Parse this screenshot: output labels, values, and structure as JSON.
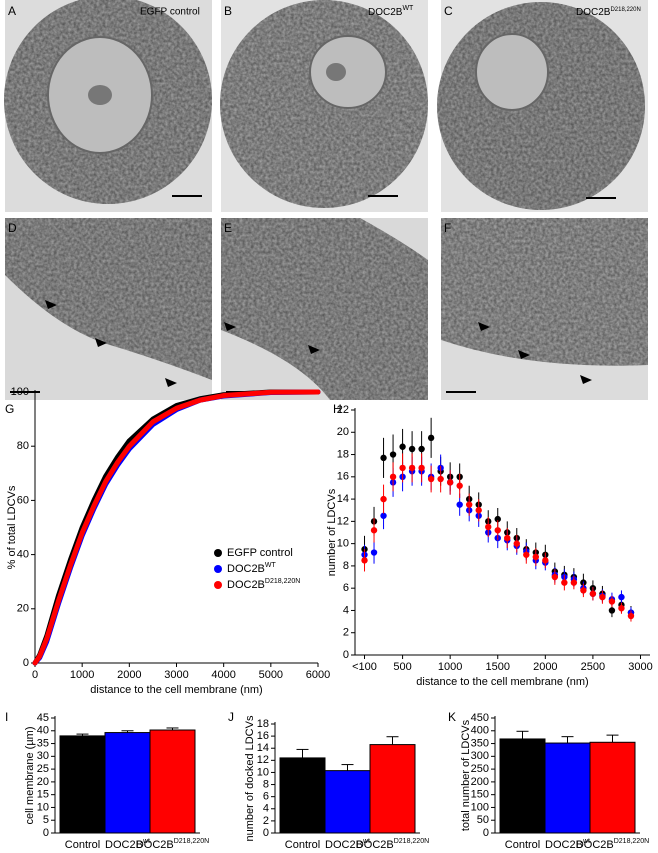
{
  "micrographs": [
    {
      "label": "A",
      "caption": "EGFP control"
    },
    {
      "label": "B",
      "caption": "DOC2B",
      "superscript": "WT"
    },
    {
      "label": "C",
      "caption": "DOC2B",
      "superscript": "D218,220N"
    },
    {
      "label": "D"
    },
    {
      "label": "E"
    },
    {
      "label": "F"
    }
  ],
  "chart_data": [
    {
      "type": "line",
      "label": "G",
      "x_label": "distance to the cell membrane (nm)",
      "y_label": "% of total LDCVs",
      "x": [
        0,
        100,
        250,
        500,
        750,
        1000,
        1250,
        1500,
        1750,
        2000,
        2500,
        3000,
        3500,
        4000,
        5000,
        6000
      ],
      "series": [
        {
          "name": "EGFP control",
          "color": "#000000",
          "values": [
            0,
            3,
            10,
            25,
            38,
            50,
            60,
            69,
            76,
            82,
            90,
            95,
            97.5,
            99,
            100,
            100
          ]
        },
        {
          "name": "DOC2B",
          "superscript": "WT",
          "color": "#0000ff",
          "values": [
            0,
            2,
            8,
            22,
            35,
            47,
            57,
            66,
            73,
            79,
            88,
            93.5,
            97,
            98.5,
            99.8,
            100
          ]
        },
        {
          "name": "DOC2B",
          "superscript": "D218,220N",
          "color": "#ff0000",
          "values": [
            0,
            2.5,
            9,
            23,
            36,
            48,
            58,
            67,
            74,
            80,
            89,
            94,
            97,
            98.7,
            99.9,
            100
          ]
        }
      ],
      "xlim": [
        0,
        6000
      ],
      "xticks": [
        0,
        1000,
        2000,
        3000,
        4000,
        5000,
        6000
      ],
      "ylim": [
        0,
        100
      ],
      "yticks": [
        0,
        20,
        40,
        60,
        80,
        100
      ],
      "legend": "lower right"
    },
    {
      "type": "scatter",
      "label": "H",
      "x_label": "distance to the cell membrane (nm)",
      "y_label": "number of LDCVs",
      "x": [
        100,
        200,
        300,
        400,
        500,
        600,
        700,
        800,
        900,
        1000,
        1100,
        1200,
        1300,
        1400,
        1500,
        1600,
        1700,
        1800,
        1900,
        2000,
        2100,
        2200,
        2300,
        2400,
        2500,
        2600,
        2700,
        2800,
        2900
      ],
      "series": [
        {
          "color": "#000000",
          "values": [
            9.5,
            12,
            17.7,
            18,
            18.7,
            18.5,
            18.5,
            19.5,
            16.5,
            16,
            16,
            14,
            13.5,
            12,
            12.2,
            11,
            10.5,
            9.5,
            9.2,
            9,
            7.5,
            7.2,
            7,
            6.5,
            6,
            5.5,
            4,
            4.5,
            3.8
          ],
          "errors": [
            1.2,
            1.3,
            1.8,
            1.8,
            1.6,
            1.6,
            1.6,
            1.8,
            1.3,
            1.3,
            1.2,
            1.2,
            1.1,
            1.0,
            1.0,
            1.0,
            0.9,
            0.9,
            0.9,
            0.9,
            0.8,
            0.8,
            0.8,
            0.8,
            0.7,
            0.7,
            0.6,
            0.7,
            0.6
          ]
        },
        {
          "color": "#0000ff",
          "values": [
            9,
            9.2,
            12.5,
            15.5,
            16,
            16.5,
            16.5,
            16,
            16.8,
            15.5,
            13.5,
            13,
            12.5,
            11,
            10.5,
            10.3,
            9.8,
            9.3,
            8.5,
            8.3,
            7.2,
            7,
            6.8,
            6,
            5.5,
            5.3,
            5,
            5.2,
            3.8
          ],
          "errors": [
            0.9,
            1.0,
            1.2,
            1.3,
            1.3,
            1.3,
            1.3,
            1.2,
            1.2,
            1.1,
            1.0,
            1.0,
            1.0,
            0.9,
            0.9,
            0.9,
            0.8,
            0.8,
            0.8,
            0.7,
            0.7,
            0.7,
            0.7,
            0.6,
            0.6,
            0.6,
            0.6,
            0.6,
            0.5
          ]
        },
        {
          "color": "#ff0000",
          "values": [
            8.5,
            11.2,
            14,
            16,
            16.8,
            16.8,
            16.8,
            15.8,
            15.8,
            15.5,
            15.2,
            13.5,
            13,
            11.5,
            11.2,
            10.5,
            10,
            9,
            8.8,
            8.5,
            7,
            6.5,
            6.5,
            5.8,
            5.5,
            5.2,
            4.8,
            4.2,
            3.5
          ],
          "errors": [
            1.0,
            1.1,
            1.3,
            1.3,
            1.3,
            1.3,
            1.3,
            1.2,
            1.2,
            1.1,
            1.1,
            1.0,
            1.0,
            0.9,
            0.9,
            0.9,
            0.8,
            0.8,
            0.8,
            0.7,
            0.7,
            0.7,
            0.6,
            0.6,
            0.6,
            0.6,
            0.5,
            0.5,
            0.5
          ]
        }
      ],
      "xlim": [
        0,
        3100
      ],
      "xticks": [
        {
          "value": 100,
          "label": "<100"
        },
        500,
        1000,
        1500,
        2000,
        2500,
        3000
      ],
      "ylim": [
        0,
        22
      ],
      "yticks": [
        0,
        2,
        4,
        6,
        8,
        10,
        12,
        14,
        16,
        18,
        20,
        22
      ]
    },
    {
      "type": "bar",
      "label": "I",
      "y_label": "cell membrane (µm)",
      "categories": [
        "Control",
        "DOC2B",
        "DOC2B"
      ],
      "category_superscripts": [
        null,
        "wt",
        "D218,220N"
      ],
      "colors": [
        "#000000",
        "#0000ff",
        "#ff0000"
      ],
      "values": [
        38,
        39.3,
        40.3
      ],
      "errors": [
        0.7,
        0.7,
        0.8
      ],
      "ylim": [
        0,
        45
      ],
      "yticks": [
        0,
        5,
        10,
        15,
        20,
        25,
        30,
        35,
        40,
        45
      ]
    },
    {
      "type": "bar",
      "label": "J",
      "y_label": "number of docked LDCVs",
      "categories": [
        "Control",
        "DOC2B",
        "DOC2B"
      ],
      "category_superscripts": [
        null,
        "wt",
        "D218,220N"
      ],
      "colors": [
        "#000000",
        "#0000ff",
        "#ff0000"
      ],
      "values": [
        12.4,
        10.3,
        14.6
      ],
      "errors": [
        1.4,
        1.0,
        1.3
      ],
      "ylim": [
        0,
        18
      ],
      "yticks": [
        0,
        2,
        4,
        6,
        8,
        10,
        12,
        14,
        16,
        18
      ]
    },
    {
      "type": "bar",
      "label": "K",
      "y_label": "total number of LDCVs",
      "categories": [
        "Control",
        "DOC2B",
        "DOC2B"
      ],
      "category_superscripts": [
        null,
        "wt",
        "D218,220N"
      ],
      "colors": [
        "#000000",
        "#0000ff",
        "#ff0000"
      ],
      "values": [
        368,
        352,
        355
      ],
      "errors": [
        30,
        25,
        28
      ],
      "ylim": [
        0,
        450
      ],
      "yticks": [
        0,
        50,
        100,
        150,
        200,
        250,
        300,
        350,
        400,
        450
      ]
    }
  ]
}
